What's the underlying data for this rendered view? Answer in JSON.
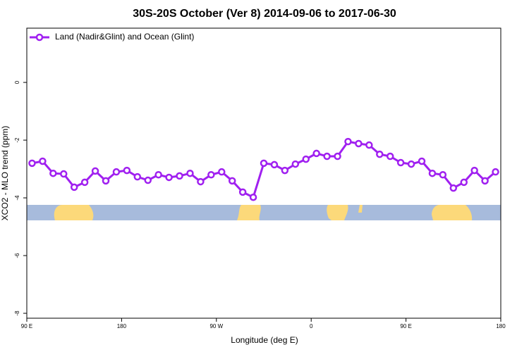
{
  "chart_data": {
    "type": "line",
    "title": "30S-20S October (Ver 8)   2014-09-06 to 2017-06-30",
    "x_label": "Longitude (deg E)",
    "y_label": "XCO2 - MLO trend (ppm)",
    "x": [
      95,
      105,
      115,
      125,
      135,
      145,
      155,
      165,
      175,
      185,
      195,
      205,
      215,
      225,
      235,
      245,
      255,
      265,
      275,
      285,
      295,
      305,
      315,
      325,
      335,
      345,
      355,
      365,
      375,
      385,
      395,
      405,
      415,
      425,
      435,
      445,
      455,
      465,
      475,
      485,
      495,
      505,
      515,
      525,
      535
    ],
    "series": [
      {
        "name": "Land (Nadir&Glint) and Ocean (Glint)",
        "color": "#a020f0",
        "values": [
          -2.8,
          -2.73,
          -3.15,
          -3.17,
          -3.63,
          -3.46,
          -3.07,
          -3.41,
          -3.1,
          -3.05,
          -3.27,
          -3.39,
          -3.2,
          -3.29,
          -3.24,
          -3.15,
          -3.44,
          -3.2,
          -3.1,
          -3.41,
          -3.8,
          -3.98,
          -2.8,
          -2.85,
          -3.05,
          -2.83,
          -2.66,
          -2.46,
          -2.56,
          -2.56,
          -2.05,
          -2.12,
          -2.17,
          -2.49,
          -2.56,
          -2.78,
          -2.83,
          -2.73,
          -3.15,
          -3.2,
          -3.66,
          -3.46,
          -3.05,
          -3.41,
          -3.1
        ]
      }
    ],
    "xlim": [
      90,
      540
    ],
    "xticks": [
      {
        "value": 90,
        "label": "90 E"
      },
      180,
      {
        "value": 270,
        "label": "90 W"
      },
      {
        "value": 360,
        "label": "0"
      },
      {
        "value": 450,
        "label": "90 E"
      },
      {
        "value": 540,
        "label": "180"
      }
    ],
    "ylim": [
      -8.17,
      1.88
    ],
    "yticks": [
      0,
      -2,
      -4,
      -6,
      -8
    ],
    "legend": "top-left"
  }
}
